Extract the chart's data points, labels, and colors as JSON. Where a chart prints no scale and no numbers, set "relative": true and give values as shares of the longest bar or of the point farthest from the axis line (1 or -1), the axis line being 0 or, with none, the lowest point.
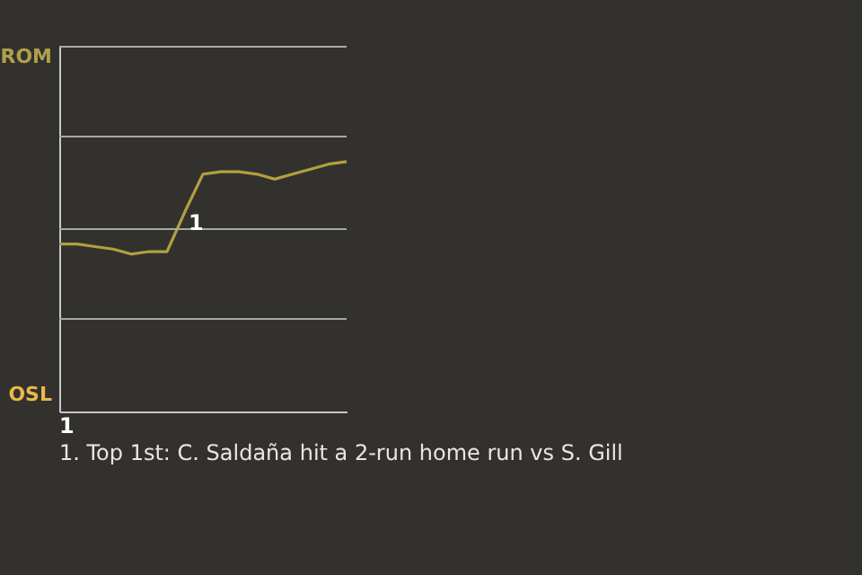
{
  "chart_data": {
    "type": "line",
    "relative": true,
    "categories": [
      null,
      null,
      null,
      null,
      null,
      null,
      null,
      null,
      null,
      null,
      null,
      null,
      null,
      null,
      null,
      null,
      null
    ],
    "series": [
      {
        "color": "#b0a040",
        "values": [
          0.67,
          0.67,
          0.66,
          0.65,
          0.63,
          0.64,
          0.64,
          0.8,
          0.95,
          0.96,
          0.96,
          0.95,
          0.93,
          0.95,
          0.97,
          0.99,
          1
        ]
      }
    ],
    "line_style": "solid",
    "ref_lines": [
      {
        "axis": "y",
        "value": 0.37,
        "color": "#a8a8a8"
      },
      {
        "axis": "y",
        "value": 0.73,
        "color": "#a8a8a8"
      },
      {
        "axis": "y",
        "value": 1.1,
        "color": "#a8a8a8"
      },
      {
        "axis": "y",
        "value": 1.46,
        "color": "#a8a8a8"
      }
    ],
    "annotations": [
      "ROM",
      "OSL",
      "1",
      "1",
      "1. Top 1st: C. Saldaña hit a 2-run home run vs S. Gill"
    ]
  }
}
